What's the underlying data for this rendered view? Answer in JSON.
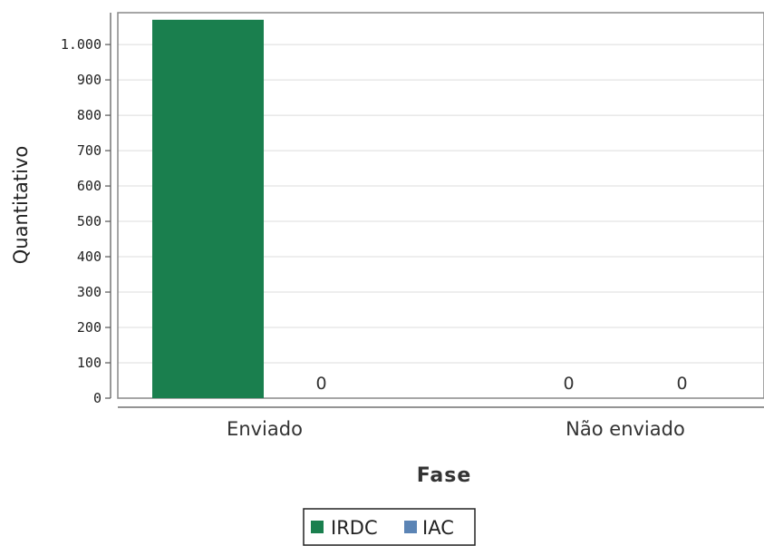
{
  "chart_data": {
    "type": "bar",
    "categories": [
      "Enviado",
      "Não enviado"
    ],
    "series": [
      {
        "name": "IRDC",
        "color": "#1a7f4e",
        "values": [
          1070,
          0
        ]
      },
      {
        "name": "IAC",
        "color": "#5b84b5",
        "values": [
          0,
          0
        ]
      }
    ],
    "data_labels": [
      {
        "category": 0,
        "series": 1,
        "text": "0"
      },
      {
        "category": 1,
        "series": 0,
        "text": "0"
      },
      {
        "category": 1,
        "series": 1,
        "text": "0"
      }
    ],
    "yticks": [
      {
        "value": 0,
        "label": "0"
      },
      {
        "value": 100,
        "label": "100"
      },
      {
        "value": 200,
        "label": "200"
      },
      {
        "value": 300,
        "label": "300"
      },
      {
        "value": 400,
        "label": "400"
      },
      {
        "value": 500,
        "label": "500"
      },
      {
        "value": 600,
        "label": "600"
      },
      {
        "value": 700,
        "label": "700"
      },
      {
        "value": 800,
        "label": "800"
      },
      {
        "value": 900,
        "label": "900"
      },
      {
        "value": 1000,
        "label": "1.000"
      }
    ],
    "ylim": [
      0,
      1090
    ],
    "xlabel": "Fase",
    "ylabel": "Quantitativo",
    "grid": true,
    "legend_position": "bottom-center",
    "title": ""
  }
}
